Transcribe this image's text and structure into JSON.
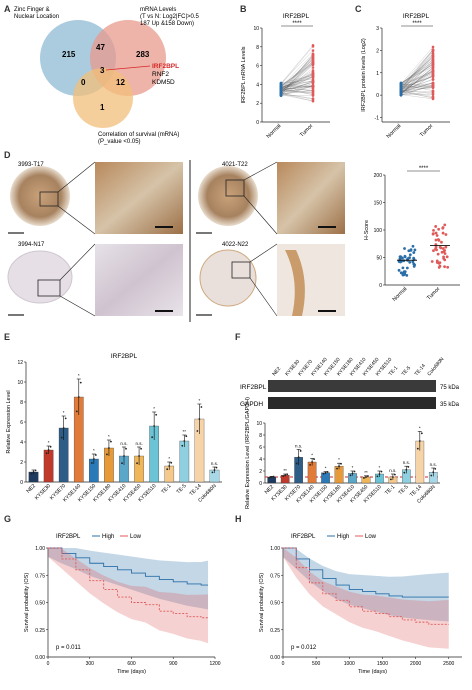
{
  "panel_letters": [
    "A",
    "B",
    "C",
    "D",
    "E",
    "F",
    "G",
    "H"
  ],
  "venn": {
    "set_zinc": "Zinc Finger &",
    "set_zinc_2": "Nuclear Location",
    "set_mrna": "mRNA Levels",
    "set_mrna_2": "(T vs N: Log2|FC|>0.5",
    "set_mrna_3": "187 Up &158 Down)",
    "set_surv": "Correlation of survival (mRNA)",
    "set_surv_2": "(P_value <0.05)",
    "n_zinc_only": "215",
    "n_zinc_mrna": "47",
    "n_mrna_only": "283",
    "n_center": "3",
    "n_zinc_surv": "0",
    "n_mrna_surv": "12",
    "n_surv_only": "1",
    "genes": [
      "IRF2BPL",
      "RNF2",
      "KDM5D"
    ]
  },
  "colors": {
    "normal": "#2a6fa8",
    "tumor": "#e05a5a",
    "sig": "#d62728"
  },
  "chart_data": [
    {
      "panel": "B",
      "type": "scatter",
      "title": "IRF2BPL",
      "ylabel": "IRF2BPL mRNA Levels",
      "categories": [
        "Normal",
        "Tumor"
      ],
      "yticks": [
        "0",
        "2",
        "4",
        "6",
        "8",
        "10"
      ],
      "ylim": [
        0,
        10
      ],
      "significance": "****"
    },
    {
      "panel": "C",
      "type": "scatter",
      "title": "IRF2BPL",
      "ylabel": "IRF2BPL protein levels (Log2)",
      "categories": [
        "Normal",
        "Tumor"
      ],
      "yticks": [
        "-1",
        "0",
        "1",
        "2",
        "3"
      ],
      "ylim": [
        -1.2,
        3
      ],
      "significance": "****"
    },
    {
      "panel": "D",
      "type": "scatter",
      "ylabel": "H-Score",
      "categories": [
        "Normal",
        "Tumor"
      ],
      "yticks": [
        "0",
        "50",
        "100",
        "150",
        "200"
      ],
      "ylim": [
        0,
        200
      ],
      "means": [
        45,
        72
      ],
      "significance": "****"
    },
    {
      "panel": "E",
      "type": "bar",
      "title": "IRF2BPL",
      "ylabel": "Relative Expression Level",
      "yticks": [
        "0",
        "2",
        "4",
        "6",
        "8",
        "10",
        "12"
      ],
      "ylim": [
        0,
        12
      ],
      "categories": [
        "NE2",
        "KYSE30",
        "KYSE70",
        "KYSE140",
        "KYSE150",
        "KYSE180",
        "KYSE410",
        "KYSE450",
        "KYSE510",
        "TE-1",
        "TE-5",
        "TE-14",
        "Colo680N"
      ],
      "values": [
        1.0,
        3.2,
        5.4,
        8.5,
        2.3,
        3.4,
        2.6,
        2.6,
        5.6,
        1.6,
        4.1,
        6.3,
        1.2
      ],
      "errors": [
        0.2,
        0.4,
        1.2,
        1.8,
        0.5,
        0.8,
        0.9,
        0.9,
        1.4,
        0.4,
        0.6,
        1.5,
        0.3
      ],
      "colors": [
        "#1f3a5f",
        "#c0392b",
        "#2e5d87",
        "#e07b39",
        "#2a7ab8",
        "#e69a3a",
        "#5ba7c9",
        "#f0b75a",
        "#6cc3d5",
        "#f5c98b",
        "#8fd0e0",
        "#f7d4a8",
        "#a7d8e8"
      ],
      "significance": [
        "",
        "*",
        "*",
        "*",
        "*",
        "*",
        "n.s.",
        "n.s.",
        "*",
        "*",
        "**",
        "*",
        "n.s."
      ]
    },
    {
      "panel": "F",
      "type": "bar",
      "ylabel": "Relative Expression Level (IRF2BPL/GAPDH)",
      "yticks": [
        "0",
        "2",
        "4",
        "6",
        "8",
        "10"
      ],
      "ylim": [
        0,
        10
      ],
      "categories": [
        "NE2",
        "KYSE30",
        "KYSE70",
        "KYSE140",
        "KYSE150",
        "KYSE180",
        "KYSE410",
        "KYSE450",
        "KYSE510",
        "TE-1",
        "TE-5",
        "TE-14",
        "Colo680N"
      ],
      "values": [
        1.0,
        1.3,
        4.3,
        3.5,
        1.7,
        2.8,
        1.6,
        1.0,
        1.5,
        1.0,
        2.2,
        7.0,
        1.8
      ],
      "errors": [
        0.1,
        0.2,
        1.3,
        0.6,
        0.2,
        0.5,
        0.4,
        0.2,
        0.5,
        0.5,
        0.6,
        1.6,
        0.7
      ],
      "colors": [
        "#1f3a5f",
        "#c0392b",
        "#2e5d87",
        "#e07b39",
        "#2a7ab8",
        "#e69a3a",
        "#5ba7c9",
        "#f0b75a",
        "#6cc3d5",
        "#f5c98b",
        "#8fd0e0",
        "#f7d4a8",
        "#a7d8e8"
      ],
      "significance": [
        "",
        "**",
        "n.s.",
        "*",
        "*",
        "*",
        "*",
        "**",
        "*",
        "n.s.",
        "n.s.",
        "*",
        "n.s."
      ],
      "reference_line": 1
    },
    {
      "panel": "G",
      "type": "line",
      "xlabel": "Time (days)",
      "ylabel": "Survival probability (OS)",
      "xticks": [
        "0",
        "300",
        "600",
        "900",
        "1200"
      ],
      "yticks": [
        "0.00",
        "0.25",
        "0.50",
        "0.75",
        "1.00"
      ],
      "xlim": [
        0,
        1200
      ],
      "ylim": [
        0,
        1
      ],
      "p_value": "p = 0.011",
      "series": [
        {
          "name": "High",
          "x": [
            0,
            100,
            200,
            300,
            400,
            500,
            600,
            700,
            800,
            900,
            1000,
            1100,
            1150
          ],
          "y": [
            1.0,
            0.95,
            0.91,
            0.86,
            0.83,
            0.8,
            0.77,
            0.74,
            0.71,
            0.69,
            0.67,
            0.66,
            0.66
          ]
        },
        {
          "name": "Low",
          "x": [
            0,
            100,
            200,
            300,
            400,
            500,
            600,
            700,
            800,
            900,
            1000,
            1100,
            1150
          ],
          "y": [
            1.0,
            0.9,
            0.8,
            0.7,
            0.62,
            0.55,
            0.5,
            0.48,
            0.42,
            0.4,
            0.37,
            0.36,
            0.35
          ]
        }
      ]
    },
    {
      "panel": "H",
      "type": "line",
      "xlabel": "Time (days)",
      "ylabel": "Survival probability (OS)",
      "xticks": [
        "0",
        "500",
        "1000",
        "1500",
        "2000",
        "2500"
      ],
      "yticks": [
        "0.00",
        "0.25",
        "0.50",
        "0.75",
        "1.00"
      ],
      "xlim": [
        0,
        2700
      ],
      "ylim": [
        0,
        1
      ],
      "p_value": "p = 0.012",
      "series": [
        {
          "name": "High",
          "x": [
            0,
            200,
            400,
            600,
            800,
            1000,
            1200,
            1400,
            1600,
            1800,
            2000,
            2200,
            2500
          ],
          "y": [
            1.0,
            0.9,
            0.8,
            0.72,
            0.66,
            0.62,
            0.6,
            0.58,
            0.56,
            0.55,
            0.55,
            0.55,
            0.55
          ]
        },
        {
          "name": "Low",
          "x": [
            0,
            200,
            400,
            600,
            800,
            1000,
            1200,
            1400,
            1600,
            1800,
            2000,
            2200,
            2500
          ],
          "y": [
            1.0,
            0.82,
            0.68,
            0.58,
            0.52,
            0.46,
            0.42,
            0.4,
            0.37,
            0.34,
            0.32,
            0.3,
            0.3
          ]
        }
      ]
    }
  ],
  "km_legend": {
    "gene": "IRF2BPL",
    "high": "High",
    "low": "Low"
  },
  "ihc": {
    "t17": "3993-T17",
    "n17": "3994-N17",
    "t22": "4021-T22",
    "n22": "4022-N22"
  },
  "blot": {
    "protein": "IRF2BPL",
    "loading": "GAPDH",
    "kda_top": "75 kDa",
    "kda_bottom": "35 kDa",
    "lanes": [
      "NE2",
      "KYSE30",
      "KYSE70",
      "KYSE140",
      "KYSE150",
      "KYSE180",
      "KYSE410",
      "KYSE450",
      "KYSE510",
      "TE-1",
      "TE-5",
      "TE-14",
      "Colo680N"
    ]
  }
}
